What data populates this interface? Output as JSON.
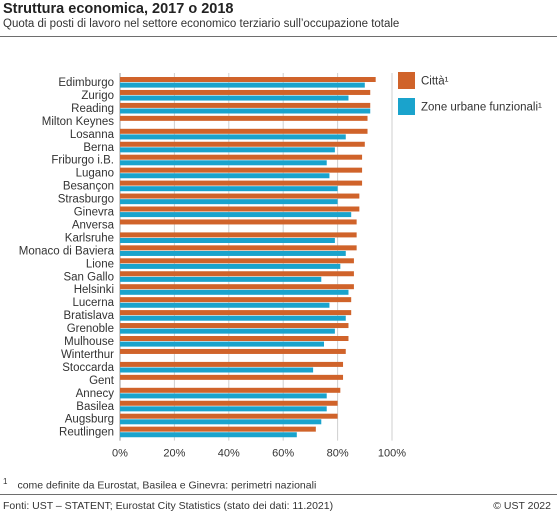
{
  "header": {
    "title": "Struttura economica, 2017 o 2018",
    "subtitle": "Quota di posti di lavoro nel settore economico terziario sull’occupazione totale"
  },
  "footer": {
    "footnote_marker": "1",
    "footnote": "come definite da Eurostat, Basilea e Ginevra: perimetri nazionali",
    "source": "Fonti: UST – STATENT; Eurostat City Statistics (stato dei dati: 11.2021)",
    "copyright": "© UST 2022"
  },
  "chart_data": {
    "type": "bar",
    "orientation": "horizontal",
    "categories": [
      "Edimburgo",
      "Zurigo",
      "Reading",
      "Milton Keynes",
      "Losanna",
      "Berna",
      "Friburgo i.B.",
      "Lugano",
      "Besançon",
      "Strasburgo",
      "Ginevra",
      "Anversa",
      "Karlsruhe",
      "Monaco di Baviera",
      "Lione",
      "San Gallo",
      "Helsinki",
      "Lucerna",
      "Bratislava",
      "Grenoble",
      "Mulhouse",
      "Winterthur",
      "Stoccarda",
      "Gent",
      "Annecy",
      "Basilea",
      "Augsburg",
      "Reutlingen"
    ],
    "series": [
      {
        "name": "Città¹",
        "color": "#d0632a",
        "values": [
          94,
          92,
          92,
          91,
          91,
          90,
          89,
          89,
          89,
          88,
          88,
          87,
          87,
          87,
          86,
          86,
          86,
          85,
          85,
          84,
          84,
          83,
          82,
          82,
          81,
          80,
          80,
          72
        ]
      },
      {
        "name": "Zone urbane funzionali¹",
        "color": "#1aa3cc",
        "values": [
          90,
          84,
          92,
          null,
          83,
          79,
          76,
          77,
          80,
          80,
          85,
          null,
          79,
          83,
          81,
          74,
          84,
          77,
          83,
          79,
          75,
          null,
          71,
          null,
          76,
          76,
          74,
          65
        ]
      }
    ],
    "xlim": [
      0,
      100
    ],
    "xticks": [
      "0%",
      "20%",
      "40%",
      "60%",
      "80%",
      "100%"
    ],
    "grid": true,
    "legend_position": "top-right"
  }
}
